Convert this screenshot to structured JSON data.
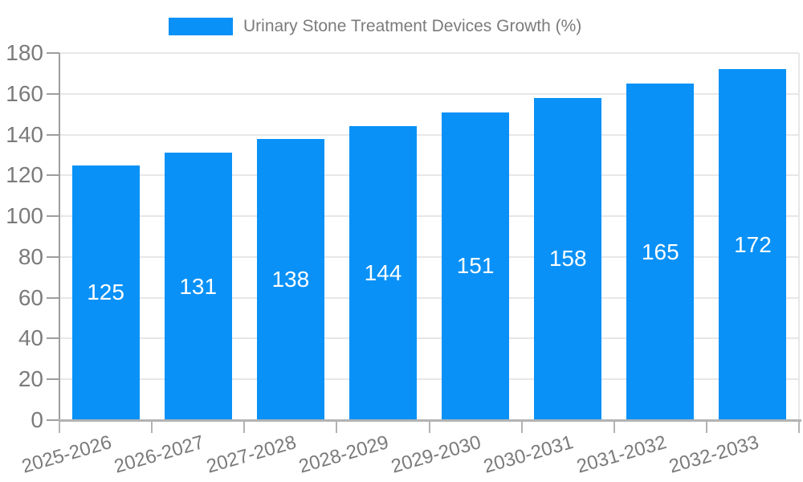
{
  "legend": {
    "label": "Urinary Stone Treatment Devices Growth (%)"
  },
  "chart_data": {
    "type": "bar",
    "title": "Urinary Stone Treatment Devices Growth (%)",
    "categories": [
      "2025-2026",
      "2026-2027",
      "2027-2028",
      "2028-2029",
      "2029-2030",
      "2030-2031",
      "2031-2032",
      "2032-2033"
    ],
    "values": [
      125,
      131,
      138,
      144,
      151,
      158,
      165,
      172
    ],
    "series": [
      {
        "name": "Urinary Stone Treatment Devices Growth (%)",
        "values": [
          125,
          131,
          138,
          144,
          151,
          158,
          165,
          172
        ]
      }
    ],
    "xlabel": "",
    "ylabel": "",
    "ylim": [
      0,
      180
    ],
    "ytick_step": 20,
    "yticks": [
      0,
      20,
      40,
      60,
      80,
      100,
      120,
      140,
      160,
      180
    ],
    "grid": true,
    "legend_position": "top",
    "bar_labels_inside": true
  },
  "colors": {
    "bar": "#0991f7",
    "bar_label": "#ffffff",
    "axis_text": "#7b7b7b",
    "grid": "#e7e7e7",
    "y_axis_line": "#9e9e9e",
    "x_axis_line": "#b3b3b3",
    "y_tick": "#9e9e9e",
    "x_tick": "#b3b3b3"
  }
}
